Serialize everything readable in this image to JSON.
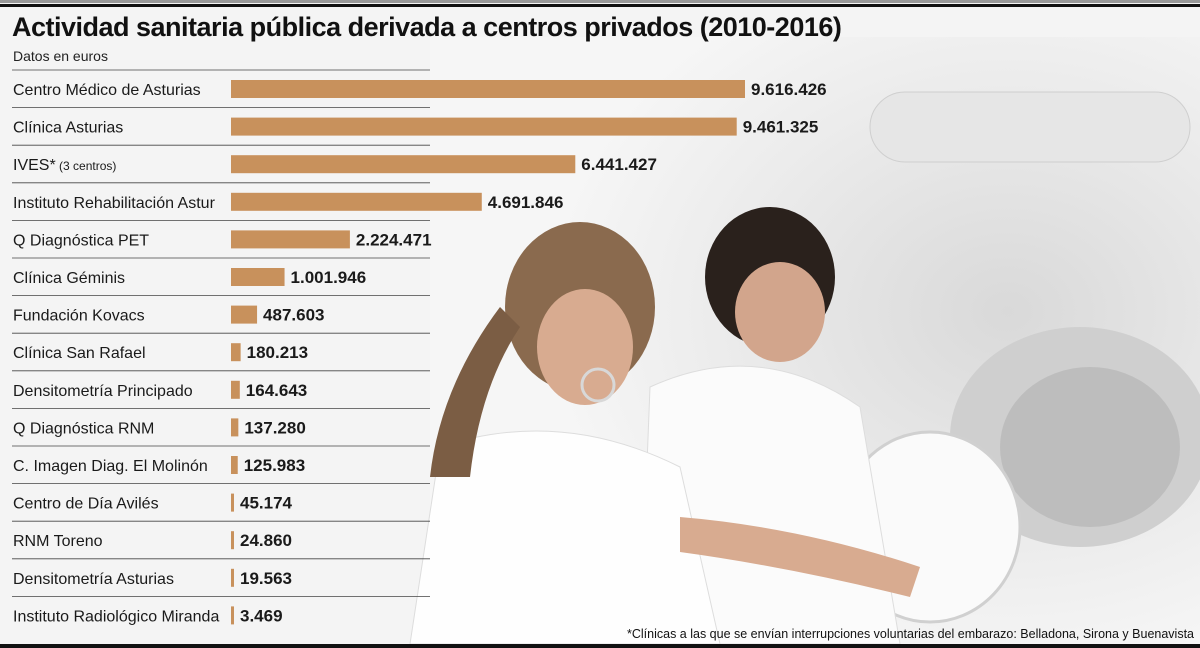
{
  "title": "Actividad sanitaria pública derivada a centros privados (2010-2016)",
  "subtitle": "Datos en euros",
  "footnote": "*Clínicas a las que se envían interrupciones voluntarias del embarazo: Belladona, Sirona y Buenavista",
  "colors": {
    "bar": "#c8915c",
    "text": "#1a1a1a"
  },
  "chart_data": {
    "type": "bar",
    "orientation": "horizontal",
    "title": "Actividad sanitaria pública derivada a centros privados (2010-2016)",
    "subtitle": "Datos en euros",
    "categories": [
      {
        "name": "Centro Médico de Asturias",
        "note": ""
      },
      {
        "name": "Clínica Asturias",
        "note": ""
      },
      {
        "name": "IVES*",
        "note": "(3 centros)"
      },
      {
        "name": "Instituto Rehabilitación Astur",
        "note": ""
      },
      {
        "name": "Q Diagnóstica PET",
        "note": ""
      },
      {
        "name": "Clínica Géminis",
        "note": ""
      },
      {
        "name": "Fundación Kovacs",
        "note": ""
      },
      {
        "name": "Clínica San Rafael",
        "note": ""
      },
      {
        "name": "Densitometría Principado",
        "note": ""
      },
      {
        "name": "Q Diagnóstica RNM",
        "note": ""
      },
      {
        "name": "C. Imagen Diag. El Molinón",
        "note": ""
      },
      {
        "name": "Centro de Día Avilés",
        "note": ""
      },
      {
        "name": "RNM Toreno",
        "note": ""
      },
      {
        "name": "Densitometría Asturias",
        "note": ""
      },
      {
        "name": "Instituto Radiológico Miranda",
        "note": ""
      }
    ],
    "values": [
      9616426,
      9461325,
      6441427,
      4691846,
      2224471,
      1001946,
      487603,
      180213,
      164643,
      137280,
      125983,
      45174,
      24860,
      19563,
      3469
    ],
    "value_labels": [
      "9.616.426",
      "9.461.325",
      "6.441.427",
      "4.691.846",
      "2.224.471",
      "1.001.946",
      "487.603",
      "180.213",
      "164.643",
      "137.280",
      "125.983",
      "45.174",
      "24.860",
      "19.563",
      "3.469"
    ],
    "xlim": [
      0,
      9616426
    ],
    "grid": false
  }
}
